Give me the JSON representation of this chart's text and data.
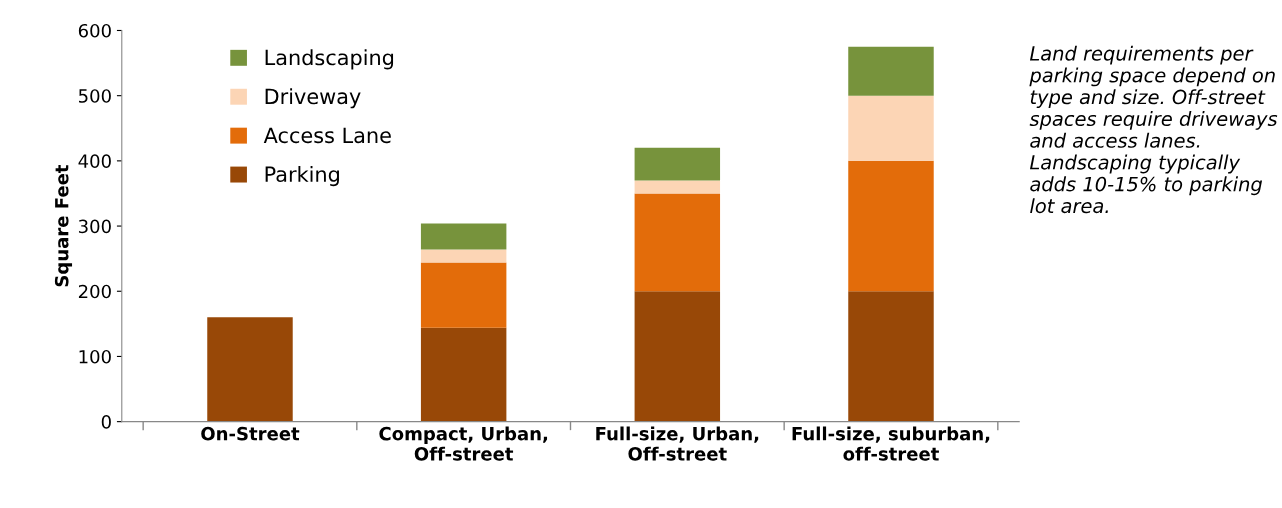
{
  "chart_data": {
    "type": "bar",
    "stacked": true,
    "ylabel": "Square Feet",
    "categories": [
      "On-Street",
      "Compact, Urban,\nOff-street",
      "Full-size, Urban,\nOff-street",
      "Full-size, suburban,\noff-street"
    ],
    "series": [
      {
        "name": "Parking",
        "color": "#984807",
        "values": [
          160,
          144,
          200,
          200
        ]
      },
      {
        "name": "Access Lane",
        "color": "#e36c0a",
        "values": [
          null,
          100,
          150,
          200
        ]
      },
      {
        "name": "Driveway",
        "color": "#fcd5b5",
        "values": [
          null,
          20,
          20,
          100
        ]
      },
      {
        "name": "Landscaping",
        "color": "#77933c",
        "values": [
          null,
          40,
          50,
          75
        ]
      }
    ],
    "ylim": [
      0,
      600
    ],
    "yticks": [
      0,
      100,
      200,
      300,
      400,
      500,
      600
    ],
    "grid": false,
    "legend": "top left",
    "annotations": [
      "Land requirements per parking space depend on type and size. Off-street spaces require driveways and access lanes. Landscaping typically adds 10-15% to parking lot area."
    ]
  }
}
